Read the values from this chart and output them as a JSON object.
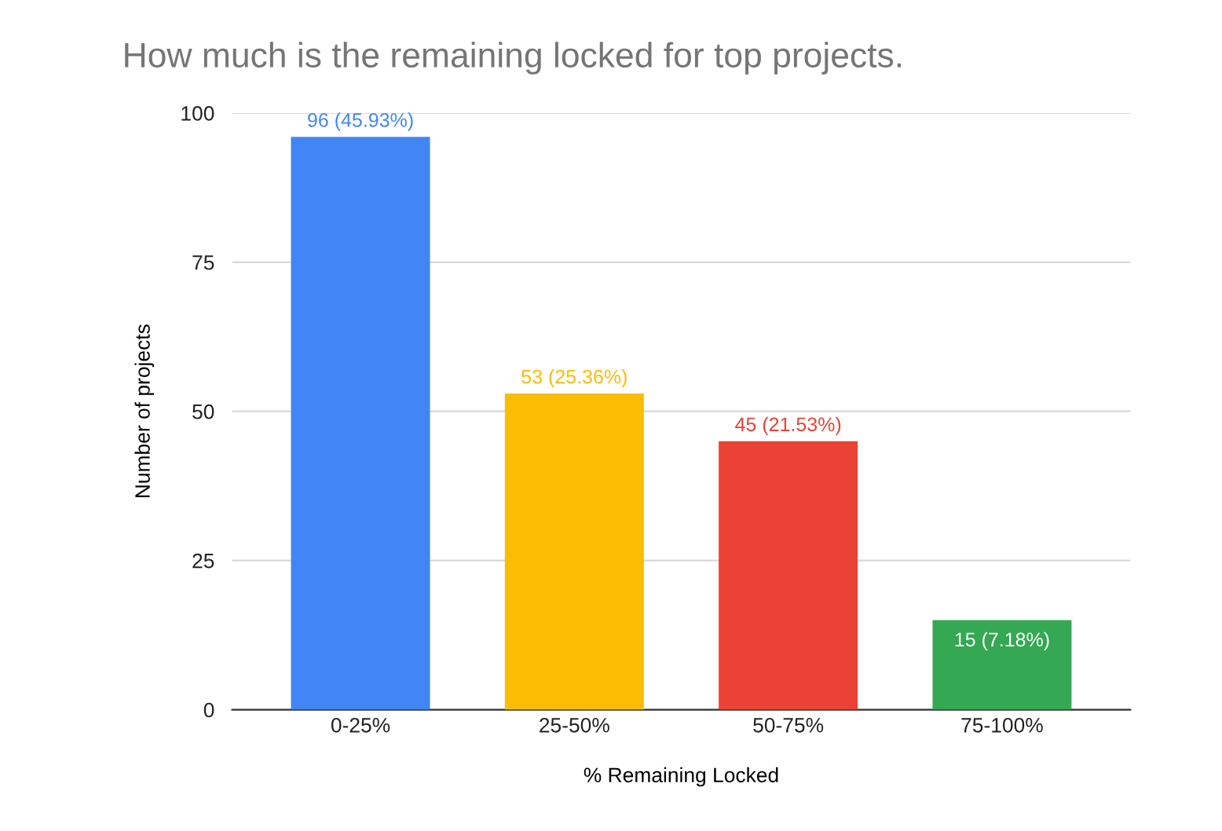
{
  "chart_data": {
    "type": "bar",
    "title": "How much is the remaining locked for top projects.",
    "xlabel": "% Remaining Locked",
    "ylabel": "Number of projects",
    "categories": [
      "0-25%",
      "25-50%",
      "50-75%",
      "75-100%"
    ],
    "values": [
      96,
      53,
      45,
      15
    ],
    "colors": [
      "#4285f4",
      "#fbbc04",
      "#ea4335",
      "#34a853"
    ],
    "value_labels": [
      "96 (45.93%)",
      "53 (25.36%)",
      "45 (21.53%)",
      "15 (7.18%)"
    ],
    "ylim": [
      0,
      100
    ],
    "yticks": [
      0,
      25,
      50,
      75,
      100
    ],
    "grid": "y",
    "legend": false
  }
}
